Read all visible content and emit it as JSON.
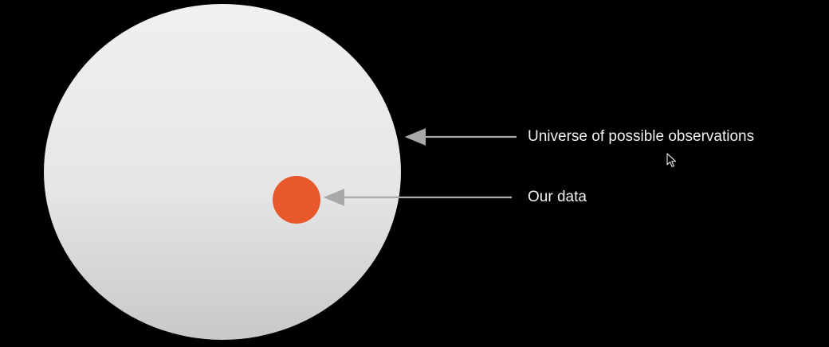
{
  "diagram": {
    "labels": {
      "universe": "Universe of possible observations",
      "data": "Our data"
    },
    "colors": {
      "background": "#000000",
      "universe_fill_top": "#f0f0f0",
      "universe_fill_bottom": "#c9c9c9",
      "data_fill": "#e8582a",
      "arrow": "#a9a9a9",
      "text": "#f2f2f2"
    },
    "icons": {
      "cursor": "mouse-pointer-icon"
    }
  }
}
